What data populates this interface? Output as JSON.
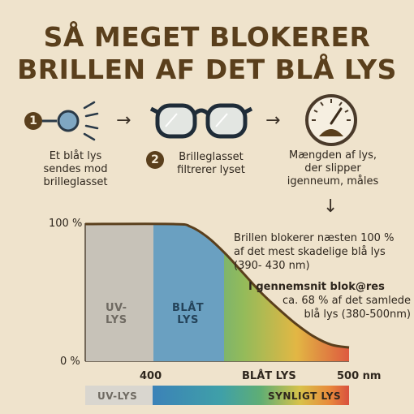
{
  "title": {
    "line1": "SÅ MEGET BLOKERER",
    "line2": "BRILLEN AF DET BLÅ LYS"
  },
  "steps": [
    {
      "number": "1",
      "text_lines": [
        "Et blåt lys",
        "sendes mod",
        "brilleglasset"
      ]
    },
    {
      "number": "2",
      "text_lines": [
        "Brilleglasset",
        "filtrerer lyset"
      ]
    },
    {
      "number": "",
      "text_lines": [
        "Mængden af lys,",
        "der slipper",
        "igenneum, måles"
      ]
    }
  ],
  "arrow_glyph": "→",
  "down_arrow_glyph": "↓",
  "notes": {
    "note1": {
      "bold": "Brillen blokerer næsten 100 %",
      "rest": [
        "af det mest skadelige blå lys",
        "(390- 430 nm)"
      ]
    },
    "note2": {
      "bold": "I gennemsnit blok@res",
      "rest": [
        "ca. 68 % af det samlede",
        "blå lys (380-500nm)"
      ]
    }
  },
  "chart": {
    "y_top": "100 %",
    "y_bottom": "0 %",
    "region_uv": [
      "UV-",
      "LYS"
    ],
    "region_blue": [
      "BLÅT",
      "LYS"
    ],
    "x_400": "400",
    "x_mid": "BLÅT LYS",
    "x_500": "500 nm"
  },
  "chart_data": {
    "type": "area",
    "x": [
      300,
      400,
      410,
      420,
      430,
      440,
      450,
      460,
      470,
      480,
      490,
      500
    ],
    "values": [
      100,
      100,
      98,
      90,
      78,
      64,
      50,
      38,
      27,
      18,
      12,
      10
    ],
    "ylim": [
      0,
      100
    ],
    "ytick_labels": [
      "100 %",
      "0 %"
    ],
    "xtick_labels": [
      "400",
      "BLÅT LYS",
      "500 nm"
    ]
  },
  "spectrum_bar": {
    "left": "UV-LYS",
    "right": "SYNLIGT LYS"
  },
  "colors": {
    "background": "#efe3cc",
    "title": "#5a3f1c",
    "uv_gray": "#c7c2b8",
    "blue_band": "#6aa0c1",
    "curve": "#5a3f1c"
  },
  "icons": [
    "light-source-icon",
    "glasses-icon",
    "meter-icon"
  ]
}
